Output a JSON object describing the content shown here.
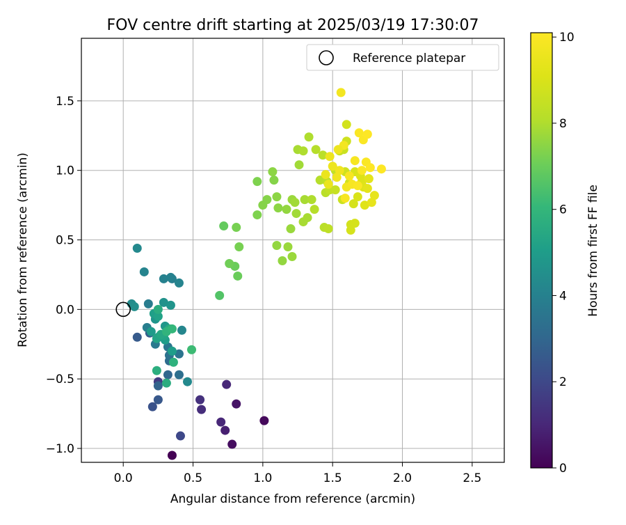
{
  "chart_data": {
    "type": "scatter",
    "title": "FOV centre drift starting at 2025/03/19 17:30:07",
    "xlabel": "Angular distance from reference (arcmin)",
    "ylabel": "Rotation from reference (arcmin)",
    "xlim": [
      -0.3,
      2.73
    ],
    "ylim": [
      -1.1,
      1.95
    ],
    "xticks": [
      0.0,
      0.5,
      1.0,
      1.5,
      2.0,
      2.5
    ],
    "yticks": [
      -1.0,
      -0.5,
      0.0,
      0.5,
      1.0,
      1.5
    ],
    "xtick_labels": [
      "0.0",
      "0.5",
      "1.0",
      "1.5",
      "2.0",
      "2.5"
    ],
    "ytick_labels": [
      "−1.0",
      "−0.5",
      "0.0",
      "0.5",
      "1.0",
      "1.5"
    ],
    "grid": true,
    "legend": {
      "position": "top-right",
      "label": "Reference platepar"
    },
    "reference_point": [
      0.0,
      0.0
    ],
    "colorbar": {
      "label": "Hours from first FF file",
      "range": [
        0,
        10.1
      ],
      "ticks": [
        0,
        2,
        4,
        6,
        8,
        10
      ],
      "tick_labels": [
        "0",
        "2",
        "4",
        "6",
        "8",
        "10"
      ],
      "colormap": "viridis"
    },
    "points": [
      [
        0.35,
        -1.05,
        0.0
      ],
      [
        0.78,
        -0.97,
        0.3
      ],
      [
        1.01,
        -0.8,
        0.2
      ],
      [
        0.81,
        -0.68,
        0.5
      ],
      [
        0.73,
        -0.87,
        0.8
      ],
      [
        0.7,
        -0.81,
        1.0
      ],
      [
        0.74,
        -0.54,
        1.0
      ],
      [
        0.56,
        -0.72,
        1.2
      ],
      [
        0.55,
        -0.65,
        1.3
      ],
      [
        0.25,
        -0.52,
        1.6
      ],
      [
        0.41,
        -0.91,
        2.0
      ],
      [
        0.21,
        -0.7,
        2.3
      ],
      [
        0.25,
        -0.65,
        2.5
      ],
      [
        0.1,
        -0.2,
        2.6
      ],
      [
        0.19,
        -0.17,
        2.7
      ],
      [
        0.25,
        -0.55,
        2.9
      ],
      [
        0.32,
        -0.47,
        3.0
      ],
      [
        0.33,
        -0.37,
        3.2
      ],
      [
        0.4,
        -0.47,
        3.3
      ],
      [
        0.33,
        -0.33,
        3.4
      ],
      [
        0.4,
        -0.32,
        3.5
      ],
      [
        0.32,
        -0.27,
        3.6
      ],
      [
        0.23,
        -0.25,
        3.7
      ],
      [
        0.18,
        0.04,
        3.8
      ],
      [
        0.17,
        -0.13,
        3.9
      ],
      [
        0.35,
        0.22,
        3.9
      ],
      [
        0.29,
        0.22,
        4.0
      ],
      [
        0.34,
        0.23,
        4.0
      ],
      [
        0.4,
        0.19,
        4.1
      ],
      [
        0.15,
        0.27,
        4.1
      ],
      [
        0.42,
        -0.15,
        4.2
      ],
      [
        0.46,
        -0.52,
        4.3
      ],
      [
        0.1,
        0.44,
        4.3
      ],
      [
        0.06,
        0.04,
        4.4
      ],
      [
        0.08,
        0.02,
        4.5
      ],
      [
        0.29,
        0.05,
        4.6
      ],
      [
        0.34,
        0.03,
        4.7
      ],
      [
        0.23,
        -0.07,
        4.7
      ],
      [
        0.3,
        -0.12,
        4.8
      ],
      [
        0.2,
        -0.16,
        4.9
      ],
      [
        0.25,
        -0.2,
        4.9
      ],
      [
        0.3,
        -0.22,
        5.0
      ],
      [
        0.35,
        -0.3,
        5.0
      ],
      [
        0.22,
        -0.03,
        5.1
      ],
      [
        0.25,
        -0.05,
        5.2
      ],
      [
        0.29,
        -0.19,
        5.3
      ],
      [
        0.24,
        -0.21,
        5.3
      ],
      [
        0.27,
        -0.18,
        5.4
      ],
      [
        0.33,
        -0.14,
        5.5
      ],
      [
        0.25,
        0.0,
        5.6
      ],
      [
        0.31,
        -0.53,
        5.6
      ],
      [
        0.24,
        -0.44,
        5.7
      ],
      [
        0.36,
        -0.38,
        5.8
      ],
      [
        0.31,
        -0.16,
        5.9
      ],
      [
        0.35,
        -0.14,
        6.0
      ],
      [
        0.49,
        -0.29,
        6.2
      ],
      [
        0.69,
        0.1,
        6.6
      ],
      [
        0.72,
        0.6,
        6.9
      ],
      [
        0.8,
        0.31,
        7.0
      ],
      [
        0.82,
        0.24,
        7.0
      ],
      [
        0.76,
        0.33,
        7.1
      ],
      [
        0.81,
        0.59,
        7.2
      ],
      [
        0.83,
        0.45,
        7.2
      ],
      [
        0.96,
        0.68,
        7.3
      ],
      [
        0.96,
        0.92,
        7.3
      ],
      [
        1.0,
        0.75,
        7.4
      ],
      [
        1.03,
        0.79,
        7.4
      ],
      [
        1.08,
        0.93,
        7.4
      ],
      [
        1.07,
        0.99,
        7.5
      ],
      [
        1.1,
        0.81,
        7.5
      ],
      [
        1.11,
        0.73,
        7.5
      ],
      [
        1.1,
        0.46,
        7.6
      ],
      [
        1.14,
        0.35,
        7.6
      ],
      [
        1.17,
        0.72,
        7.6
      ],
      [
        1.18,
        0.45,
        7.7
      ],
      [
        1.21,
        0.38,
        7.7
      ],
      [
        1.2,
        0.58,
        7.7
      ],
      [
        1.21,
        0.79,
        7.7
      ],
      [
        1.23,
        0.77,
        7.8
      ],
      [
        1.24,
        0.69,
        7.8
      ],
      [
        1.26,
        1.04,
        7.8
      ],
      [
        1.25,
        1.15,
        7.9
      ],
      [
        1.29,
        0.63,
        7.9
      ],
      [
        1.3,
        0.79,
        7.9
      ],
      [
        1.32,
        0.66,
        7.9
      ],
      [
        1.33,
        1.24,
        8.0
      ],
      [
        1.29,
        1.14,
        8.0
      ],
      [
        1.35,
        0.79,
        8.0
      ],
      [
        1.37,
        0.72,
        8.1
      ],
      [
        1.38,
        1.15,
        8.1
      ],
      [
        1.41,
        0.93,
        8.1
      ],
      [
        1.43,
        1.11,
        8.2
      ],
      [
        1.44,
        0.59,
        8.2
      ],
      [
        1.45,
        0.84,
        8.2
      ],
      [
        1.47,
        0.58,
        8.3
      ],
      [
        1.46,
        0.92,
        8.3
      ],
      [
        1.48,
        0.86,
        8.4
      ],
      [
        1.52,
        1.0,
        8.4
      ],
      [
        1.52,
        0.86,
        8.5
      ],
      [
        1.55,
        1.14,
        8.5
      ],
      [
        1.57,
        0.79,
        8.6
      ],
      [
        1.58,
        1.15,
        8.6
      ],
      [
        1.59,
        0.99,
        8.7
      ],
      [
        1.6,
        1.21,
        8.7
      ],
      [
        1.6,
        1.33,
        8.8
      ],
      [
        1.62,
        0.91,
        8.8
      ],
      [
        1.63,
        0.61,
        8.8
      ],
      [
        1.63,
        0.57,
        8.9
      ],
      [
        1.65,
        0.76,
        8.9
      ],
      [
        1.66,
        0.62,
        8.9
      ],
      [
        1.66,
        0.99,
        9.0
      ],
      [
        1.68,
        0.81,
        9.0
      ],
      [
        1.7,
        0.96,
        9.1
      ],
      [
        1.71,
        0.92,
        9.1
      ],
      [
        1.72,
        0.88,
        9.2
      ],
      [
        1.73,
        0.75,
        9.2
      ],
      [
        1.75,
        0.87,
        9.3
      ],
      [
        1.76,
        0.94,
        9.3
      ],
      [
        1.8,
        0.82,
        9.4
      ],
      [
        1.78,
        0.77,
        9.4
      ],
      [
        1.45,
        0.97,
        9.5
      ],
      [
        1.47,
        0.9,
        9.5
      ],
      [
        1.48,
        1.1,
        9.6
      ],
      [
        1.5,
        1.03,
        9.6
      ],
      [
        1.53,
        0.95,
        9.7
      ],
      [
        1.55,
        1.0,
        9.7
      ],
      [
        1.56,
        1.56,
        9.8
      ],
      [
        1.58,
        1.18,
        9.8
      ],
      [
        1.6,
        0.88,
        9.8
      ],
      [
        1.62,
        0.96,
        9.9
      ],
      [
        1.64,
        0.9,
        9.9
      ],
      [
        1.66,
        1.07,
        9.9
      ],
      [
        1.68,
        0.89,
        10.0
      ],
      [
        1.69,
        1.27,
        10.0
      ],
      [
        1.71,
        1.0,
        10.0
      ],
      [
        1.72,
        1.22,
        10.0
      ],
      [
        1.74,
        1.06,
        10.0
      ],
      [
        1.75,
        1.26,
        10.1
      ],
      [
        1.77,
        1.02,
        10.1
      ],
      [
        1.85,
        1.01,
        10.1
      ],
      [
        1.59,
        0.8,
        9.9
      ],
      [
        1.54,
        1.15,
        9.6
      ]
    ]
  }
}
